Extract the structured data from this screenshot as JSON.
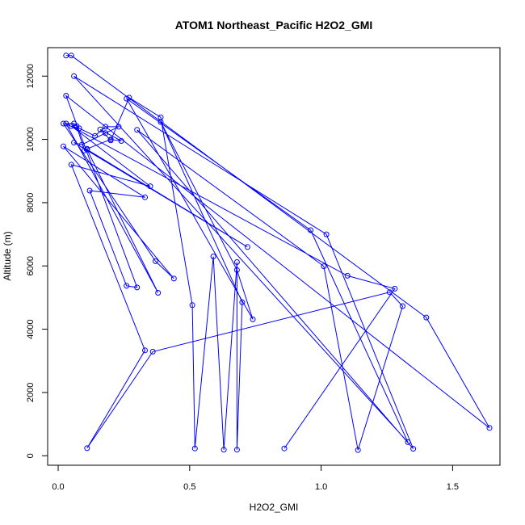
{
  "chart_data": {
    "type": "line",
    "title": "ATOM1 Northeast_Pacific H2O2_GMI",
    "xlabel": "H2O2_GMI",
    "ylabel": "Altitude (m)",
    "xlim": [
      -0.04,
      1.68
    ],
    "ylim": [
      -300,
      12900
    ],
    "x_ticks": [
      0.0,
      0.5,
      1.0,
      1.5
    ],
    "x_tick_labels": [
      "0.0",
      "0.5",
      "1.0",
      "1.5"
    ],
    "y_ticks": [
      0,
      2000,
      4000,
      6000,
      8000,
      10000,
      12000
    ],
    "y_tick_labels": [
      "0",
      "2000",
      "4000",
      "6000",
      "8000",
      "10000",
      "12000"
    ],
    "grid": false,
    "legend": "none",
    "series": [
      {
        "color": "#0000ff",
        "marker": "open-circle",
        "points": [
          [
            0.03,
            12650
          ],
          [
            0.05,
            12650
          ],
          [
            1.4,
            4370
          ],
          [
            1.64,
            880
          ],
          [
            0.03,
            11380
          ],
          [
            0.3,
            5320
          ],
          [
            0.26,
            5370
          ],
          [
            0.12,
            8380
          ],
          [
            0.33,
            8170
          ],
          [
            0.02,
            9780
          ],
          [
            0.44,
            5600
          ],
          [
            0.37,
            6150
          ],
          [
            0.02,
            10500
          ],
          [
            0.06,
            10500
          ],
          [
            0.07,
            10420
          ],
          [
            0.1,
            9650
          ],
          [
            0.11,
            9700
          ],
          [
            0.2,
            10000
          ],
          [
            0.24,
            9950
          ],
          [
            0.16,
            10310
          ],
          [
            0.2,
            9970
          ],
          [
            0.27,
            11320
          ],
          [
            0.39,
            10700
          ],
          [
            0.51,
            4760
          ],
          [
            0.52,
            230
          ],
          [
            0.59,
            6300
          ],
          [
            0.63,
            190
          ],
          [
            0.68,
            6120
          ],
          [
            0.68,
            190
          ],
          [
            0.7,
            4850
          ],
          [
            0.39,
            10550
          ],
          [
            0.68,
            5870
          ],
          [
            0.74,
            4310
          ],
          [
            0.26,
            11290
          ],
          [
            0.96,
            7130
          ],
          [
            1.33,
            430
          ],
          [
            0.06,
            12000
          ],
          [
            1.02,
            7000
          ],
          [
            1.35,
            220
          ],
          [
            0.3,
            10300
          ],
          [
            1.01,
            5990
          ],
          [
            1.14,
            180
          ],
          [
            1.31,
            4730
          ],
          [
            1.26,
            5170
          ],
          [
            0.36,
            3290
          ],
          [
            0.11,
            240
          ],
          [
            0.33,
            3330
          ],
          [
            0.05,
            9200
          ],
          [
            0.35,
            8520
          ],
          [
            0.05,
            10420
          ],
          [
            0.08,
            10350
          ],
          [
            0.14,
            10110
          ],
          [
            0.18,
            10400
          ],
          [
            0.23,
            10400
          ],
          [
            0.18,
            10200
          ],
          [
            0.09,
            9830
          ],
          [
            0.06,
            9900
          ],
          [
            0.72,
            6600
          ],
          [
            0.11,
            9680
          ],
          [
            0.38,
            5150
          ],
          [
            0.03,
            10500
          ],
          [
            1.1,
            5690
          ],
          [
            1.28,
            5280
          ],
          [
            0.86,
            230
          ]
        ]
      }
    ]
  }
}
